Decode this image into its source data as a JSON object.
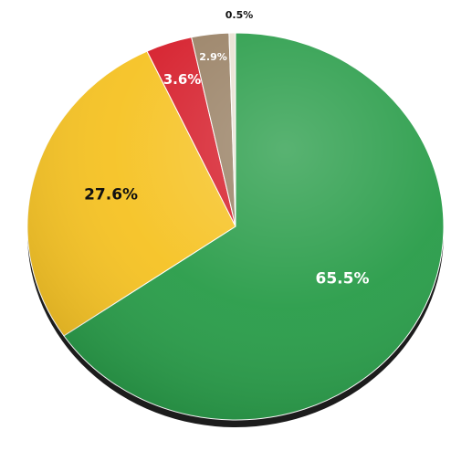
{
  "chart_data": {
    "type": "pie",
    "title": "",
    "slices": [
      {
        "label": "65.5%",
        "value": 65.5,
        "color": "#2a9d4a",
        "label_color": "#ffffff"
      },
      {
        "label": "27.6%",
        "value": 27.6,
        "color": "#f6c325",
        "label_color": "#111111"
      },
      {
        "label": "3.6%",
        "value": 3.6,
        "color": "#d61f2c",
        "label_color": "#ffffff"
      },
      {
        "label": "2.9%",
        "value": 2.9,
        "color": "#9a8266",
        "label_color": "#ffffff"
      },
      {
        "label": "0.5%",
        "value": 0.5,
        "color": "#e9e2d3",
        "label_color": "#111111"
      }
    ],
    "start_angle": "12 o'clock",
    "direction": "clockwise",
    "legend": "none"
  }
}
